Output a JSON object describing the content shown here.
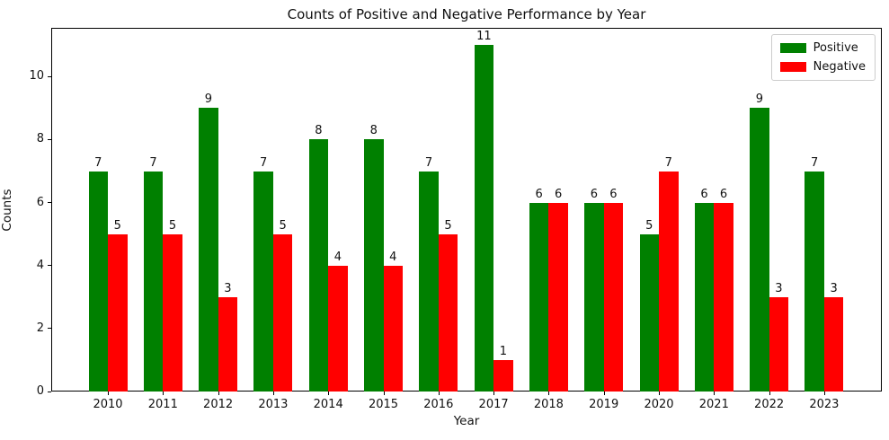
{
  "chart_data": {
    "type": "bar",
    "title": "Counts of Positive and Negative Performance by Year",
    "xlabel": "Year",
    "ylabel": "Counts",
    "categories": [
      "2010",
      "2011",
      "2012",
      "2013",
      "2014",
      "2015",
      "2016",
      "2017",
      "2018",
      "2019",
      "2020",
      "2021",
      "2022",
      "2023"
    ],
    "series": [
      {
        "name": "Positive",
        "color": "#008000",
        "values": [
          7,
          7,
          9,
          7,
          8,
          8,
          7,
          11,
          6,
          6,
          5,
          6,
          9,
          7
        ]
      },
      {
        "name": "Negative",
        "color": "#ff0000",
        "values": [
          5,
          5,
          3,
          5,
          4,
          4,
          5,
          1,
          6,
          6,
          7,
          6,
          3,
          3
        ]
      }
    ],
    "yticks": [
      0,
      2,
      4,
      6,
      8,
      10
    ],
    "ylim": [
      0,
      11.55
    ],
    "bar_value_labels": true,
    "grid": false,
    "legend_position": "upper right"
  }
}
